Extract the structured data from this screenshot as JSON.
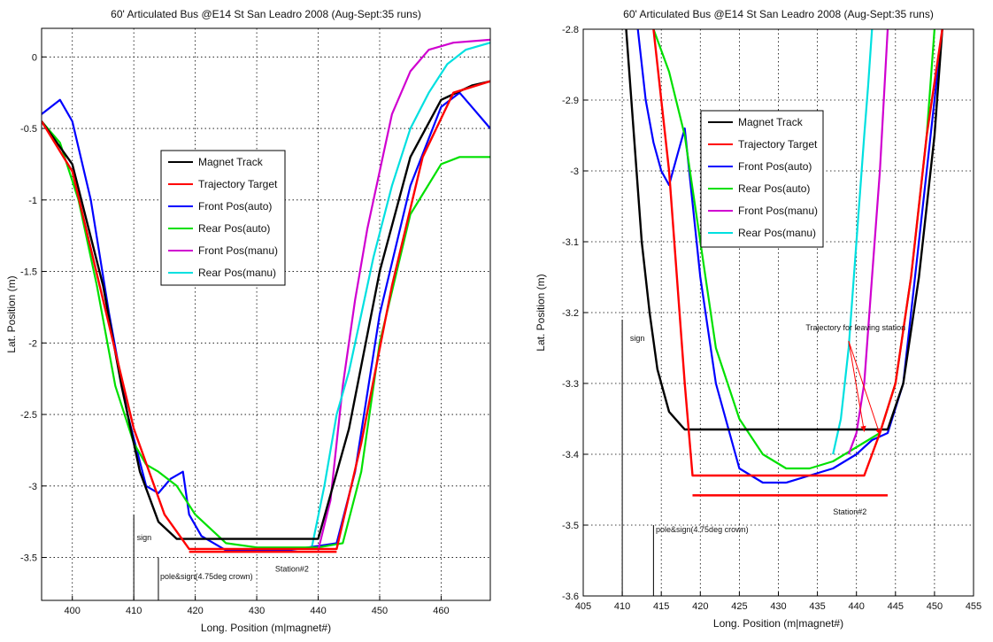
{
  "chart_data": [
    {
      "type": "line",
      "title": "60' Articulated Bus @E14 St San Leadro 2008 (Aug-Sept:35 runs)",
      "xlabel": "Long. Position (m|magnet#)",
      "ylabel": "Lat. Position (m)",
      "xlim": [
        395,
        468
      ],
      "ylim": [
        -3.8,
        0.2
      ],
      "xticks": [
        "400",
        "410",
        "420",
        "430",
        "440",
        "450",
        "460"
      ],
      "yticks": [
        "0",
        "-0.5",
        "-1",
        "-1.5",
        "-2",
        "-2.5",
        "-3",
        "-3.5"
      ],
      "grid": true,
      "legend": [
        "Magnet Track",
        "Trajectory Target",
        "Front Pos(auto)",
        "Rear Pos(auto)",
        "Front Pos(manu)",
        "Rear Pos(manu)"
      ],
      "legend_position": "center",
      "colors": [
        "#000000",
        "#ff0000",
        "#0000ff",
        "#00e000",
        "#d000d0",
        "#00e0e0"
      ],
      "series": [
        {
          "name": "Magnet Track",
          "x": [
            395,
            400,
            405,
            408,
            411,
            414,
            417,
            420,
            430,
            440,
            445,
            450,
            455,
            460,
            465,
            468
          ],
          "y": [
            -0.45,
            -0.75,
            -1.6,
            -2.3,
            -2.9,
            -3.25,
            -3.37,
            -3.37,
            -3.37,
            -3.37,
            -2.6,
            -1.5,
            -0.7,
            -0.3,
            -0.2,
            -0.17
          ]
        },
        {
          "name": "Trajectory Target",
          "x": [
            395,
            400,
            405,
            410,
            415,
            419,
            425,
            435,
            443,
            447,
            452,
            457,
            462,
            468
          ],
          "y": [
            -0.45,
            -0.8,
            -1.7,
            -2.6,
            -3.2,
            -3.44,
            -3.44,
            -3.44,
            -3.44,
            -2.7,
            -1.6,
            -0.7,
            -0.25,
            -0.17
          ]
        },
        {
          "name": "Front Pos(auto)",
          "x": [
            395,
            398,
            400,
            403,
            406,
            409,
            412,
            414,
            416,
            418,
            419,
            421,
            425,
            430,
            435,
            440,
            443,
            446,
            450,
            455,
            460,
            463,
            465,
            468
          ],
          "y": [
            -0.4,
            -0.3,
            -0.45,
            -1.0,
            -1.8,
            -2.5,
            -3.0,
            -3.05,
            -2.95,
            -2.9,
            -3.2,
            -3.35,
            -3.45,
            -3.45,
            -3.45,
            -3.42,
            -3.4,
            -2.9,
            -1.8,
            -0.9,
            -0.35,
            -0.25,
            -0.35,
            -0.5
          ]
        },
        {
          "name": "Rear Pos(auto)",
          "x": [
            395,
            398,
            401,
            404,
            407,
            410,
            412,
            414,
            417,
            420,
            425,
            430,
            440,
            444,
            447,
            450,
            455,
            460,
            463,
            468
          ],
          "y": [
            -0.45,
            -0.6,
            -1.0,
            -1.6,
            -2.3,
            -2.7,
            -2.85,
            -2.9,
            -3.0,
            -3.2,
            -3.4,
            -3.43,
            -3.43,
            -3.4,
            -2.9,
            -2.0,
            -1.1,
            -0.75,
            -0.7,
            -0.7
          ]
        },
        {
          "name": "Front Pos(manu)",
          "x": [
            440,
            442,
            444,
            446,
            448,
            450,
            452,
            455,
            458,
            462,
            468
          ],
          "y": [
            -3.45,
            -3.1,
            -2.3,
            -1.7,
            -1.2,
            -0.8,
            -0.4,
            -0.1,
            0.05,
            0.1,
            0.12
          ]
        },
        {
          "name": "Rear Pos(manu)",
          "x": [
            439,
            441,
            443,
            445,
            447,
            449,
            452,
            455,
            458,
            461,
            464,
            468
          ],
          "y": [
            -3.42,
            -3.0,
            -2.5,
            -2.2,
            -1.8,
            -1.4,
            -0.9,
            -0.5,
            -0.25,
            -0.05,
            0.05,
            0.1
          ]
        }
      ],
      "annotations": [
        {
          "text": "sign",
          "x": 410.5,
          "y": -3.38
        },
        {
          "text": "pole&sign(4.75deg crown)",
          "x": 414.3,
          "y": -3.65
        },
        {
          "text": "Station#2",
          "x": 433,
          "y": -3.6
        }
      ],
      "markers": [
        {
          "type": "vline",
          "x": 410,
          "y_from": -3.8,
          "y_to": -3.2
        },
        {
          "type": "vline",
          "x": 414,
          "y_from": -3.8,
          "y_to": -3.5
        },
        {
          "type": "hline",
          "x_from": 419,
          "x_to": 443,
          "y": -3.46
        }
      ]
    },
    {
      "type": "line",
      "title": "60' Articulated Bus @E14 St San Leadro 2008 (Aug-Sept:35 runs)",
      "xlabel": "Long. Position (m|magnet#)",
      "ylabel": "Lat. Position (m)",
      "xlim": [
        405,
        455
      ],
      "ylim": [
        -3.6,
        -2.8
      ],
      "xticks": [
        "405",
        "410",
        "415",
        "420",
        "425",
        "430",
        "435",
        "440",
        "445",
        "450",
        "455"
      ],
      "yticks": [
        "-2.8",
        "-2.9",
        "-3",
        "-3.1",
        "-3.2",
        "-3.3",
        "-3.4",
        "-3.5",
        "-3.6"
      ],
      "grid": true,
      "legend": [
        "Magnet Track",
        "Trajectory Target",
        "Front Pos(auto)",
        "Rear Pos(auto)",
        "Front Pos(manu)",
        "Rear Pos(manu)"
      ],
      "legend_position": "upper-center",
      "colors": [
        "#000000",
        "#ff0000",
        "#0000ff",
        "#00e000",
        "#d000d0",
        "#00e0e0"
      ],
      "series": [
        {
          "name": "Magnet Track",
          "x": [
            410.5,
            411.5,
            412.5,
            413.5,
            414.5,
            416,
            418,
            420,
            430,
            440,
            444,
            446,
            448,
            450,
            451
          ],
          "y": [
            -2.8,
            -2.95,
            -3.1,
            -3.2,
            -3.28,
            -3.34,
            -3.365,
            -3.365,
            -3.365,
            -3.365,
            -3.365,
            -3.3,
            -3.15,
            -2.95,
            -2.8
          ]
        },
        {
          "name": "Trajectory Target",
          "x": [
            414,
            416,
            418,
            419,
            425,
            435,
            441,
            443,
            445,
            447,
            449,
            451
          ],
          "y": [
            -2.8,
            -3.0,
            -3.3,
            -3.43,
            -3.43,
            -3.43,
            -3.43,
            -3.37,
            -3.3,
            -3.15,
            -2.95,
            -2.8
          ]
        },
        {
          "name": "Front Pos(auto)",
          "x": [
            412,
            413,
            414,
            415,
            416,
            417,
            418,
            420,
            422,
            425,
            428,
            431,
            434,
            437,
            440,
            442,
            444,
            446,
            448,
            450,
            451
          ],
          "y": [
            -2.8,
            -2.9,
            -2.96,
            -3.0,
            -3.02,
            -2.98,
            -2.94,
            -3.15,
            -3.3,
            -3.42,
            -3.44,
            -3.44,
            -3.43,
            -3.42,
            -3.4,
            -3.38,
            -3.37,
            -3.3,
            -3.1,
            -2.9,
            -2.8
          ]
        },
        {
          "name": "Rear Pos(auto)",
          "x": [
            414,
            416,
            418,
            420,
            422,
            425,
            428,
            431,
            434,
            437,
            440,
            443,
            445,
            447,
            449,
            450
          ],
          "y": [
            -2.8,
            -2.86,
            -2.95,
            -3.1,
            -3.25,
            -3.35,
            -3.4,
            -3.42,
            -3.42,
            -3.41,
            -3.39,
            -3.37,
            -3.3,
            -3.15,
            -2.95,
            -2.8
          ]
        },
        {
          "name": "Front Pos(manu)",
          "x": [
            439,
            440,
            441,
            442,
            443,
            443.5,
            444
          ],
          "y": [
            -3.4,
            -3.37,
            -3.3,
            -3.15,
            -3.0,
            -2.9,
            -2.8
          ]
        },
        {
          "name": "Rear Pos(manu)",
          "x": [
            437,
            438,
            439,
            440,
            441,
            441.5,
            442
          ],
          "y": [
            -3.4,
            -3.35,
            -3.25,
            -3.1,
            -2.95,
            -2.88,
            -2.8
          ]
        }
      ],
      "annotations": [
        {
          "text": "sign",
          "x": 411,
          "y": -3.24
        },
        {
          "text": "pole&sign(4.75deg crown)",
          "x": 414.3,
          "y": -3.51
        },
        {
          "text": "Station#2",
          "x": 437,
          "y": -3.485
        },
        {
          "text": "Trajectory for leaving station",
          "x": 433.5,
          "y": -3.225
        }
      ],
      "markers": [
        {
          "type": "vline",
          "x": 410,
          "y_from": -3.6,
          "y_to": -3.21
        },
        {
          "type": "vline",
          "x": 414,
          "y_from": -3.6,
          "y_to": -3.5
        },
        {
          "type": "hline",
          "x_from": 419,
          "x_to": 444,
          "y": -3.458
        },
        {
          "type": "arrow",
          "x_from": 439,
          "y_from": -3.24,
          "x_to": 441,
          "y_to": -3.368
        },
        {
          "type": "arrow",
          "x_from": 439,
          "y_from": -3.24,
          "x_to": 443,
          "y_to": -3.372
        }
      ]
    }
  ]
}
